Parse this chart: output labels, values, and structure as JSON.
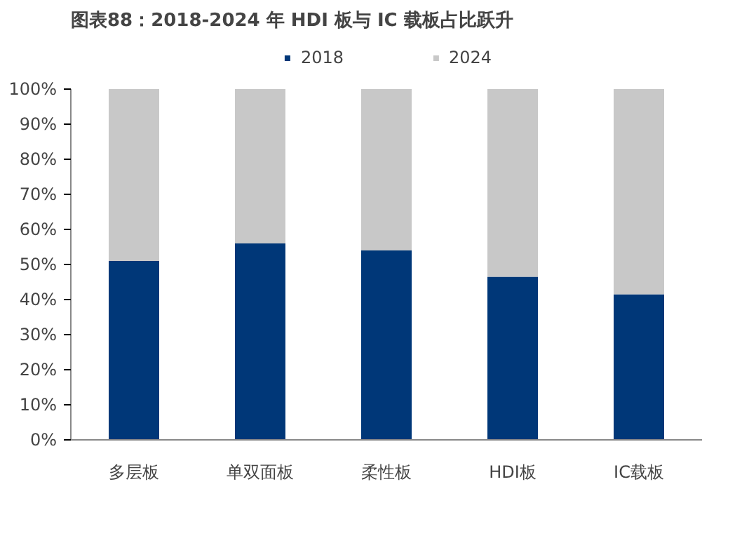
{
  "chart_data": {
    "type": "bar",
    "title": "图表88：2018-2024 年 HDI 板与 IC 载板占比跃升",
    "stacked": true,
    "categories": [
      "多层板",
      "单双面板",
      "柔性板",
      "HDI板",
      "IC载板"
    ],
    "series": [
      {
        "name": "2018",
        "color": "#003778",
        "values": [
          51,
          56,
          54,
          46.5,
          41.5
        ]
      },
      {
        "name": "2024",
        "color": "#c8c8c8",
        "values": [
          49,
          44,
          46,
          53.5,
          58.5
        ]
      }
    ],
    "ylim": [
      0,
      100
    ],
    "yticks": [
      {
        "value": 0,
        "label": "0%"
      },
      {
        "value": 10,
        "label": "10%"
      },
      {
        "value": 20,
        "label": "20%"
      },
      {
        "value": 30,
        "label": "30%"
      },
      {
        "value": 40,
        "label": "40%"
      },
      {
        "value": 50,
        "label": "50%"
      },
      {
        "value": 60,
        "label": "60%"
      },
      {
        "value": 70,
        "label": "70%"
      },
      {
        "value": 80,
        "label": "80%"
      },
      {
        "value": 90,
        "label": "90%"
      },
      {
        "value": 100,
        "label": "100%"
      }
    ],
    "grid": false,
    "legend": "top"
  }
}
